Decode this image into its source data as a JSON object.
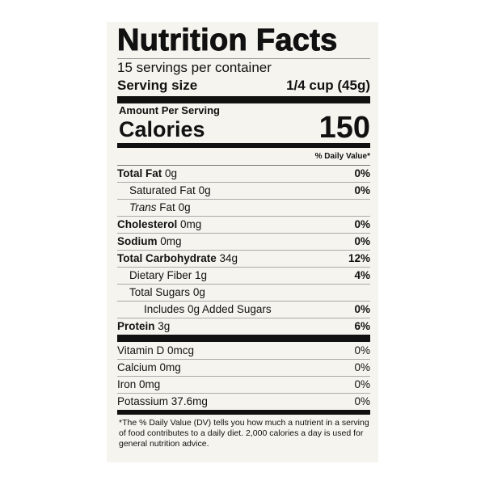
{
  "title": "Nutrition Facts",
  "servings_per_container": "15 servings per container",
  "serving_size": {
    "label": "Serving size",
    "value": "1/4 cup (45g)"
  },
  "amount_per_serving": "Amount Per Serving",
  "calories": {
    "label": "Calories",
    "value": "150"
  },
  "daily_value_header": "% Daily Value*",
  "nutrients": [
    {
      "name": "Total Fat",
      "amount": "0g",
      "dv": "0%"
    },
    {
      "name": "Saturated Fat",
      "amount": "0g",
      "dv": "0%"
    },
    {
      "name_italic": "Trans",
      "name": "Fat",
      "amount": "0g",
      "dv": ""
    },
    {
      "name": "Cholesterol",
      "amount": "0mg",
      "dv": "0%"
    },
    {
      "name": "Sodium",
      "amount": "0mg",
      "dv": "0%"
    },
    {
      "name": "Total Carbohydrate",
      "amount": "34g",
      "dv": "12%"
    },
    {
      "name": "Dietary Fiber",
      "amount": "1g",
      "dv": "4%"
    },
    {
      "name": "Total Sugars",
      "amount": "0g",
      "dv": ""
    },
    {
      "name": "Includes 0g Added Sugars",
      "amount": "",
      "dv": "0%"
    },
    {
      "name": "Protein",
      "amount": "3g",
      "dv": "6%"
    }
  ],
  "vitamins": [
    {
      "name": "Vitamin D",
      "amount": "0mcg",
      "dv": "0%"
    },
    {
      "name": "Calcium",
      "amount": "0mg",
      "dv": "0%"
    },
    {
      "name": "Iron",
      "amount": "0mg",
      "dv": "0%"
    },
    {
      "name": "Potassium",
      "amount": "37.6mg",
      "dv": "0%"
    }
  ],
  "footnote": "*The % Daily Value (DV) tells you how much a nutrient in a serving of food contributes to a daily diet. 2,000 calories a day is used for general nutrition advice."
}
